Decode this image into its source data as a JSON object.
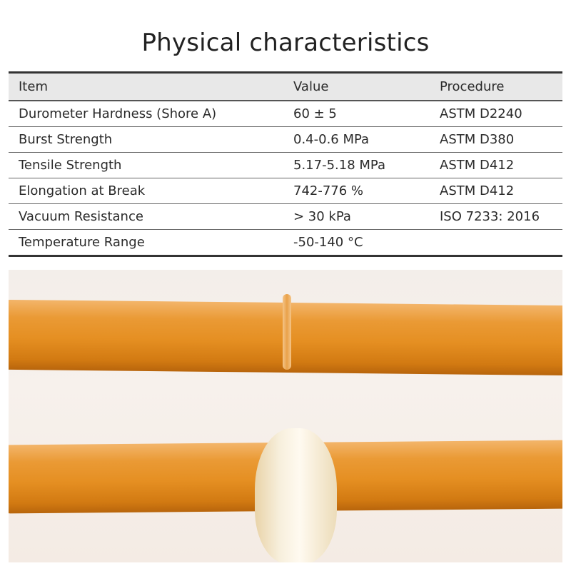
{
  "title": "Physical characteristics",
  "table": {
    "headers": [
      "Item",
      "Value",
      "Procedure"
    ],
    "rows": [
      [
        "Durometer Hardness (Shore A)",
        "60 ± 5",
        "ASTM D2240"
      ],
      [
        "Burst Strength",
        "0.4-0.6 MPa",
        "ASTM D380"
      ],
      [
        "Tensile Strength",
        "5.17-5.18 MPa",
        "ASTM D412"
      ],
      [
        "Elongation at Break",
        "742-776 %",
        "ASTM D412"
      ],
      [
        "Vacuum Resistance",
        "> 30 kPa",
        "ISO 7233: 2016"
      ],
      [
        "Temperature Range",
        "-50-140 °C",
        ""
      ]
    ]
  },
  "colors": {
    "tube": "#e58f22",
    "header_bg": "#e8e8e8"
  }
}
